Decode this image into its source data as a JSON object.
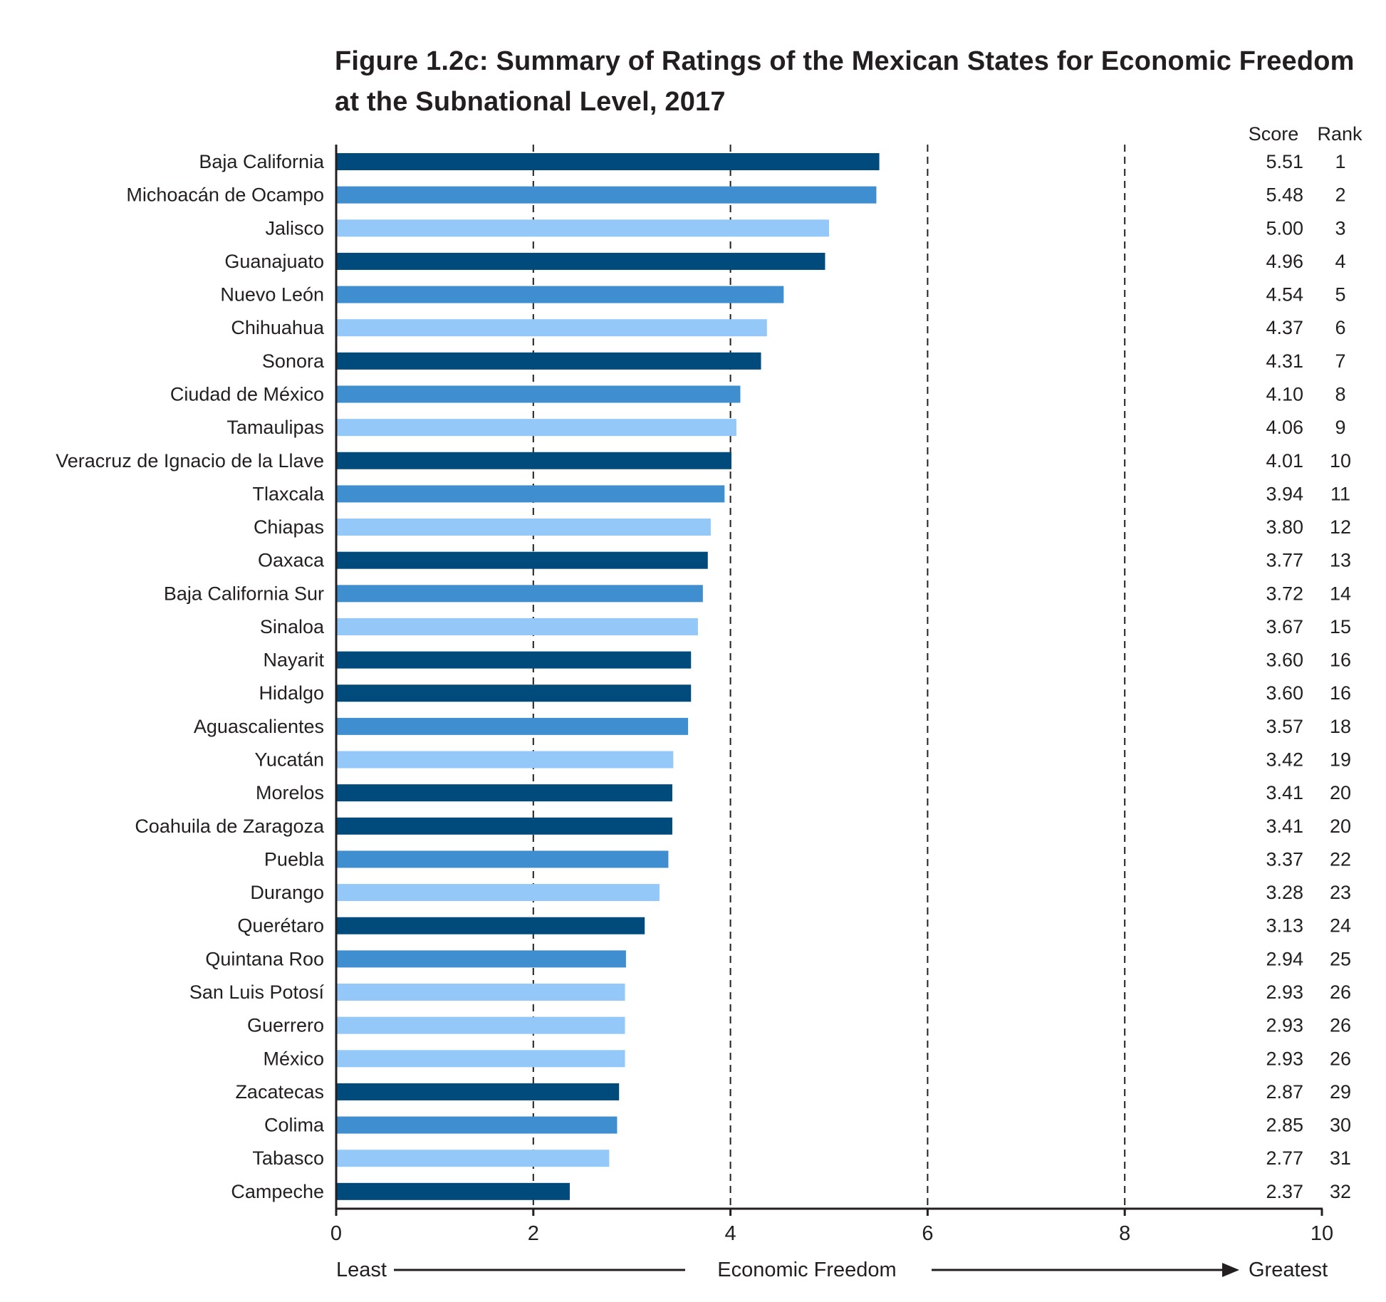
{
  "title_line1": "Figure 1.2c: Summary of Ratings of the Mexican States for Economic Freedom",
  "title_line2": "at the Subnational Level, 2017",
  "score_header": "Score",
  "rank_header": "Rank",
  "axis_left_label": "Least",
  "axis_center_label": "Economic Freedom",
  "axis_right_label": "Greatest",
  "colors": {
    "dark": "#004b7c",
    "mid": "#3f8fd0",
    "light": "#94c8f8"
  },
  "chart_data": {
    "type": "bar",
    "orientation": "horizontal",
    "xlim": [
      0,
      10
    ],
    "ticks": [
      "0",
      "2",
      "4",
      "6",
      "8",
      "10"
    ],
    "grid": "vertical dashed at 2, 4, 6, 8",
    "categories": [
      "Baja California",
      "Michoacán de Ocampo",
      "Jalisco",
      "Guanajuato",
      "Nuevo León",
      "Chihuahua",
      "Sonora",
      "Ciudad de México",
      "Tamaulipas",
      "Veracruz de Ignacio de la Llave",
      "Tlaxcala",
      "Chiapas",
      "Oaxaca",
      "Baja California Sur",
      "Sinaloa",
      "Nayarit",
      "Hidalgo",
      "Aguascalientes",
      "Yucatán",
      "Morelos",
      "Coahuila de Zaragoza",
      "Puebla",
      "Durango",
      "Querétaro",
      "Quintana Roo",
      "San Luis Potosí",
      "Guerrero",
      "México",
      "Zacatecas",
      "Colima",
      "Tabasco",
      "Campeche"
    ],
    "values": [
      5.51,
      5.48,
      5.0,
      4.96,
      4.54,
      4.37,
      4.31,
      4.1,
      4.06,
      4.01,
      3.94,
      3.8,
      3.77,
      3.72,
      3.67,
      3.6,
      3.6,
      3.57,
      3.42,
      3.41,
      3.41,
      3.37,
      3.28,
      3.13,
      2.94,
      2.93,
      2.93,
      2.93,
      2.87,
      2.85,
      2.77,
      2.37
    ],
    "score_labels": [
      "5.51",
      "5.48",
      "5.00",
      "4.96",
      "4.54",
      "4.37",
      "4.31",
      "4.10",
      "4.06",
      "4.01",
      "3.94",
      "3.80",
      "3.77",
      "3.72",
      "3.67",
      "3.60",
      "3.60",
      "3.57",
      "3.42",
      "3.41",
      "3.41",
      "3.37",
      "3.28",
      "3.13",
      "2.94",
      "2.93",
      "2.93",
      "2.93",
      "2.87",
      "2.85",
      "2.77",
      "2.37"
    ],
    "ranks": [
      "1",
      "2",
      "3",
      "4",
      "5",
      "6",
      "7",
      "8",
      "9",
      "10",
      "11",
      "12",
      "13",
      "14",
      "15",
      "16",
      "16",
      "18",
      "19",
      "20",
      "20",
      "22",
      "23",
      "24",
      "25",
      "26",
      "26",
      "26",
      "29",
      "30",
      "31",
      "32"
    ],
    "bar_colors": [
      "dark",
      "mid",
      "light",
      "dark",
      "mid",
      "light",
      "dark",
      "mid",
      "light",
      "dark",
      "mid",
      "light",
      "dark",
      "mid",
      "light",
      "dark",
      "dark",
      "mid",
      "light",
      "dark",
      "dark",
      "mid",
      "light",
      "dark",
      "mid",
      "light",
      "light",
      "light",
      "dark",
      "mid",
      "light",
      "dark"
    ]
  }
}
